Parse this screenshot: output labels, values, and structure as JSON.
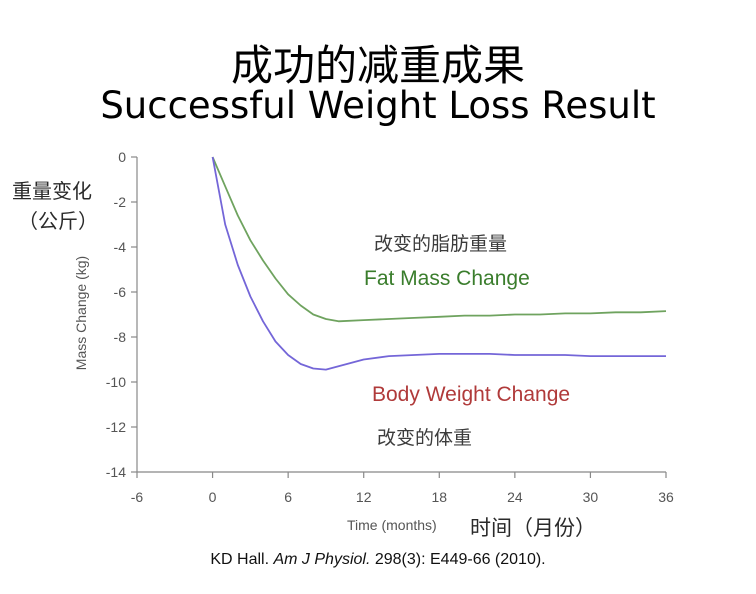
{
  "title_zh": "成功的减重成果",
  "title_en": "Successful Weight Loss Result",
  "ylabel_zh_line1": "重量变化",
  "ylabel_zh_line2": "（公斤）",
  "xlabel_zh": "时间（月份）",
  "fat_label_zh": "改变的脂肪重量",
  "body_label_zh": "改变的体重",
  "citation": {
    "author": "KD Hall. ",
    "journal": "Am J Physiol.",
    "rest": " 298(3): E449-66 (2010)."
  },
  "colors": {
    "fat": "#3a7d2c",
    "fat_line": "#6fa35f",
    "body": "#b03a3a",
    "body_line": "#7466d8",
    "axis": "#888888"
  },
  "chart_data": {
    "type": "line",
    "title": "Successful Weight Loss Result",
    "xlabel": "Time (months)",
    "ylabel": "Mass Change (kg)",
    "xlim": [
      -6,
      36
    ],
    "ylim": [
      -14,
      0
    ],
    "xticks": [
      -6,
      0,
      6,
      12,
      18,
      24,
      30,
      36
    ],
    "yticks": [
      0,
      -2,
      -4,
      -6,
      -8,
      -10,
      -12,
      -14
    ],
    "grid": false,
    "series": [
      {
        "name": "Fat Mass Change",
        "color_key": "fat_line",
        "x": [
          0,
          1,
          2,
          3,
          4,
          5,
          6,
          7,
          8,
          9,
          10,
          12,
          14,
          16,
          18,
          20,
          22,
          24,
          26,
          28,
          30,
          32,
          34,
          36
        ],
        "y": [
          0,
          -1.3,
          -2.6,
          -3.7,
          -4.6,
          -5.4,
          -6.1,
          -6.6,
          -7.0,
          -7.2,
          -7.3,
          -7.25,
          -7.2,
          -7.15,
          -7.1,
          -7.05,
          -7.05,
          -7.0,
          -7.0,
          -6.95,
          -6.95,
          -6.9,
          -6.9,
          -6.85
        ]
      },
      {
        "name": "Body Weight Change",
        "color_key": "body_line",
        "x": [
          0,
          1,
          2,
          3,
          4,
          5,
          6,
          7,
          8,
          9,
          10,
          12,
          14,
          16,
          18,
          20,
          22,
          24,
          26,
          28,
          30,
          32,
          34,
          36
        ],
        "y": [
          0,
          -3.0,
          -4.8,
          -6.2,
          -7.3,
          -8.2,
          -8.8,
          -9.2,
          -9.4,
          -9.45,
          -9.3,
          -9.0,
          -8.85,
          -8.8,
          -8.75,
          -8.75,
          -8.75,
          -8.8,
          -8.8,
          -8.8,
          -8.85,
          -8.85,
          -8.85,
          -8.85
        ]
      }
    ],
    "annotations": [
      {
        "text": "Fat Mass Change",
        "series": 0
      },
      {
        "text": "Body Weight Change",
        "series": 1
      }
    ]
  }
}
